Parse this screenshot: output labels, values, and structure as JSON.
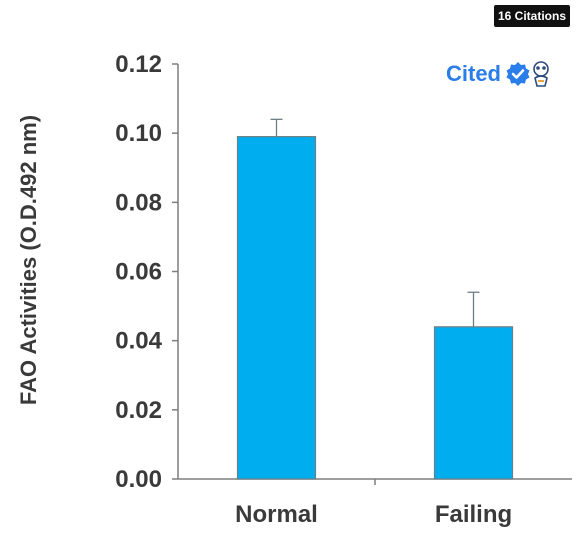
{
  "badge": {
    "citations_label": "16 Citations"
  },
  "cited": {
    "label": "Cited",
    "check_icon": "verified-check-icon",
    "mascot_icon": "owl-mascot-icon",
    "accent_color": "#2b7de9"
  },
  "colors": {
    "bar": "#00aeef",
    "axis": "#7f7f7f",
    "text": "#3a3a3a"
  },
  "chart_data": {
    "type": "bar",
    "title": "",
    "xlabel": "",
    "ylabel": "FAO Activities (O.D.492 nm)",
    "categories": [
      "Normal",
      "Failing"
    ],
    "values": [
      0.099,
      0.044
    ],
    "error_bars": [
      0.005,
      0.01
    ],
    "ylim": [
      0,
      0.12
    ],
    "yticks": [
      0.0,
      0.02,
      0.04,
      0.06,
      0.08,
      0.1,
      0.12
    ],
    "ytick_labels": [
      "0.00",
      "0.02",
      "0.04",
      "0.06",
      "0.08",
      "0.10",
      "0.12"
    ],
    "grid": false,
    "legend": "none"
  }
}
